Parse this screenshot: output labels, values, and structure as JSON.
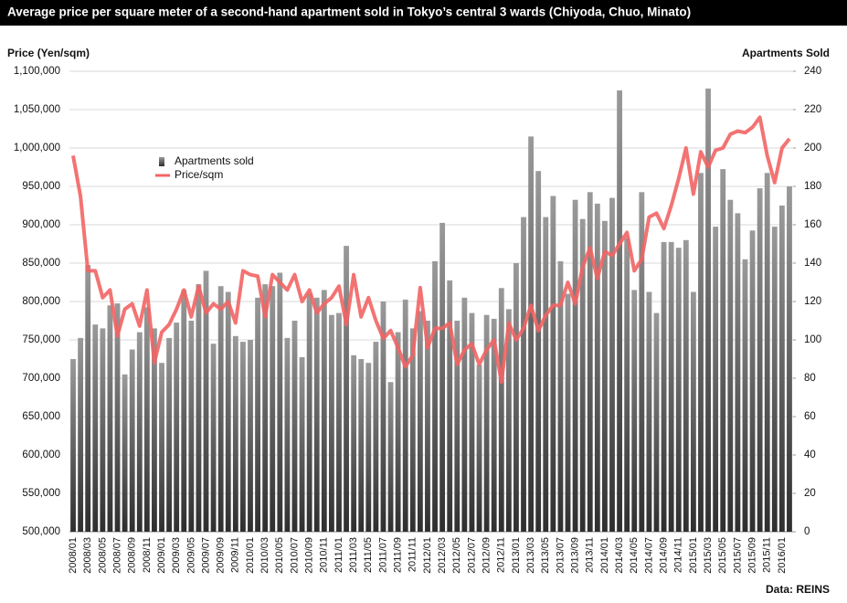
{
  "chart_data": {
    "type": "bar",
    "title": "Average price per square meter of a second-hand apartment sold in Tokyo’s central 3 wards (Chiyoda, Chuo, Minato)",
    "ylabel": "Price (Yen/sqm)",
    "y2label": "Apartments Sold",
    "source": "Data: REINS",
    "categories": [
      "2008/01",
      null,
      "2008/03",
      null,
      "2008/05",
      null,
      "2008/07",
      null,
      "2008/09",
      null,
      "2008/11",
      null,
      "2009/01",
      null,
      "2009/03",
      null,
      "2009/05",
      null,
      "2009/07",
      null,
      "2009/09",
      null,
      "2009/11",
      null,
      "2010/01",
      null,
      "2010/03",
      null,
      "2010/05",
      null,
      "2010/07",
      null,
      "2010/09",
      null,
      "2010/11",
      null,
      "2011/01",
      null,
      "2011/03",
      null,
      "2011/05",
      null,
      "2011/07",
      null,
      "2011/09",
      null,
      "2011/11",
      null,
      "2012/01",
      null,
      "2012/03",
      null,
      "2012/05",
      null,
      "2012/07",
      null,
      "2012/09",
      null,
      "2012/11",
      null,
      "2013/01",
      null,
      "2013/03",
      null,
      "2013/05",
      null,
      "2013/07",
      null,
      "2013/09",
      null,
      "2013/11",
      null,
      "2014/01",
      null,
      "2014/03",
      null,
      "2014/05",
      null,
      "2014/07",
      null,
      "2014/09",
      null,
      "2014/11",
      null,
      "2015/01",
      null,
      "2015/03",
      null,
      "2015/05",
      null,
      "2015/07",
      null,
      "2015/09",
      null,
      "2015/11",
      null,
      "2016/01",
      null
    ],
    "series": [
      {
        "name": "Apartments sold",
        "type": "bar",
        "axis": "y2",
        "color": "#9a9a9a",
        "values": [
          90,
          101,
          139,
          108,
          106,
          118,
          119,
          82,
          95,
          104,
          117,
          106,
          88,
          101,
          109,
          126,
          110,
          129,
          136,
          98,
          128,
          125,
          102,
          99,
          100,
          122,
          129,
          128,
          135,
          101,
          110,
          91,
          124,
          122,
          126,
          113,
          114,
          149,
          92,
          90,
          88,
          99,
          120,
          78,
          104,
          121,
          106,
          115,
          110,
          141,
          161,
          131,
          110,
          122,
          114,
          87,
          113,
          111,
          127,
          116,
          140,
          164,
          206,
          188,
          164,
          175,
          141,
          124,
          173,
          163,
          177,
          171,
          162,
          174,
          230,
          153,
          126,
          177,
          125,
          114,
          151,
          151,
          148,
          152,
          125,
          187,
          231,
          159,
          189,
          173,
          166,
          142,
          157,
          179,
          187,
          159,
          170,
          180
        ]
      },
      {
        "name": "Price/sqm",
        "type": "line",
        "color": "#f26464",
        "values": [
          990000,
          937000,
          840000,
          840000,
          805000,
          815000,
          755000,
          790000,
          797000,
          768000,
          815000,
          720000,
          760000,
          770000,
          790000,
          815000,
          780000,
          820000,
          785000,
          797000,
          790000,
          800000,
          772000,
          840000,
          835000,
          833000,
          780000,
          835000,
          825000,
          815000,
          835000,
          800000,
          815000,
          785000,
          797000,
          805000,
          820000,
          770000,
          835000,
          780000,
          805000,
          775000,
          752000,
          762000,
          740000,
          715000,
          730000,
          818000,
          740000,
          765000,
          765000,
          772000,
          718000,
          737000,
          745000,
          718000,
          737000,
          750000,
          695000,
          772000,
          750000,
          765000,
          795000,
          762000,
          782000,
          795000,
          795000,
          825000,
          797000,
          845000,
          870000,
          830000,
          865000,
          860000,
          875000,
          890000,
          840000,
          855000,
          910000,
          915000,
          895000,
          925000,
          960000,
          1000000,
          940000,
          995000,
          975000,
          997000,
          1000000,
          1018000,
          1022000,
          1020000,
          1027000,
          1040000,
          990000,
          955000,
          1000000,
          1012000
        ]
      }
    ],
    "ylim": [
      500000,
      1100000
    ],
    "yticks": [
      {
        "value": 500000,
        "label": "500,000"
      },
      {
        "value": 550000,
        "label": "550,000"
      },
      {
        "value": 600000,
        "label": "600,000"
      },
      {
        "value": 650000,
        "label": "650,000"
      },
      {
        "value": 700000,
        "label": "700,000"
      },
      {
        "value": 750000,
        "label": "750,000"
      },
      {
        "value": 800000,
        "label": "800,000"
      },
      {
        "value": 850000,
        "label": "850,000"
      },
      {
        "value": 900000,
        "label": "900,000"
      },
      {
        "value": 950000,
        "label": "950,000"
      },
      {
        "value": 1000000,
        "label": "1,000,000"
      },
      {
        "value": 1050000,
        "label": "1,050,000"
      },
      {
        "value": 1100000,
        "label": "1,100,000"
      }
    ],
    "y2lim": [
      0,
      240
    ],
    "y2ticks": [
      0,
      20,
      40,
      60,
      80,
      100,
      120,
      140,
      160,
      180,
      200,
      220,
      240
    ],
    "grid": true
  }
}
